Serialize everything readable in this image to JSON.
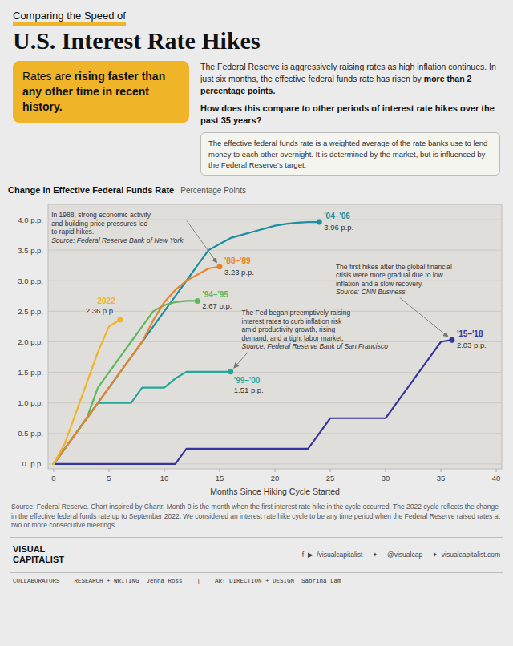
{
  "chart_data": {
    "type": "line",
    "subtitle": "Comparing the Speed of",
    "title": "U.S. Interest Rate Hikes",
    "highlight": [
      "Rates are",
      "rising faster than any other time in recent history."
    ],
    "intro": [
      "The Federal Reserve is aggressively raising rates as high inflation continues. In just six months, the effective federal funds rate has risen by",
      "more than 2 percentage points."
    ],
    "question": "How does this compare to other periods of interest rate hikes over the past 35 years?",
    "info": "The effective federal funds rate is a weighted average of the rate banks use to lend money to each other overnight. It is determined by the market, but is influenced by the Federal Reserve's target.",
    "ylabel": "Change in Effective Federal Funds Rate",
    "yunit": "Percentage Points",
    "xlabel": "Months Since Hiking Cycle Started",
    "xlim": [
      -0.5,
      40.5
    ],
    "ylim": [
      -0.08,
      4.25
    ],
    "xticks": [
      0,
      5,
      10,
      15,
      20,
      25,
      30,
      35,
      40
    ],
    "yticks": [
      {
        "value": 0.0,
        "label": "0. p.p."
      },
      {
        "value": 0.5,
        "label": "0.5 p.p."
      },
      {
        "value": 1.0,
        "label": "1.0 p.p."
      },
      {
        "value": 1.5,
        "label": "1.5 p.p."
      },
      {
        "value": 2.0,
        "label": "2.0 p.p."
      },
      {
        "value": 2.5,
        "label": "2.5 p.p."
      },
      {
        "value": 3.0,
        "label": "3.0 p.p."
      },
      {
        "value": 3.5,
        "label": "3.5 p.p."
      },
      {
        "value": 4.0,
        "label": "4.0 p.p."
      }
    ],
    "grid": true,
    "series": [
      {
        "name": "'15–'18",
        "color": "#3535a0",
        "x": [
          0,
          1,
          2,
          3,
          4,
          5,
          6,
          7,
          8,
          9,
          10,
          11,
          12,
          13,
          14,
          15,
          16,
          17,
          18,
          19,
          20,
          21,
          22,
          23,
          24,
          25,
          26,
          27,
          28,
          29,
          30,
          31,
          32,
          33,
          34,
          35,
          36
        ],
        "values": [
          0.0,
          0.0,
          0.0,
          0.0,
          0.0,
          0.0,
          0.0,
          0.0,
          0.0,
          0.0,
          0.0,
          0.0,
          0.25,
          0.25,
          0.25,
          0.25,
          0.25,
          0.25,
          0.25,
          0.25,
          0.25,
          0.25,
          0.25,
          0.25,
          0.5,
          0.75,
          0.75,
          0.75,
          0.75,
          0.75,
          0.75,
          1.0,
          1.25,
          1.5,
          1.75,
          2.0,
          2.03
        ],
        "value_labels": [
          null,
          null,
          null,
          null,
          null,
          null,
          null,
          null,
          null,
          null,
          null,
          null,
          null,
          null,
          null,
          null,
          null,
          null,
          null,
          null,
          null,
          null,
          null,
          null,
          null,
          null,
          null,
          null,
          null,
          null,
          null,
          null,
          null,
          null,
          null,
          null,
          "2.03 p.p."
        ]
      },
      {
        "name": "'04–'06",
        "color": "#1a8fa0",
        "x": [
          0,
          1,
          2,
          3,
          4,
          5,
          6,
          7,
          8,
          9,
          10,
          11,
          12,
          13,
          14,
          15,
          16,
          17,
          18,
          19,
          20,
          21,
          22,
          23,
          24
        ],
        "values": [
          0.0,
          0.25,
          0.5,
          0.75,
          1.0,
          1.25,
          1.5,
          1.75,
          2.0,
          2.25,
          2.5,
          2.75,
          3.0,
          3.25,
          3.5,
          3.6,
          3.7,
          3.75,
          3.8,
          3.85,
          3.9,
          3.93,
          3.95,
          3.96,
          3.96
        ],
        "value_labels": [
          null,
          null,
          null,
          null,
          null,
          null,
          null,
          null,
          null,
          null,
          null,
          null,
          null,
          null,
          null,
          null,
          null,
          null,
          null,
          null,
          null,
          null,
          null,
          null,
          "3.96 p.p."
        ]
      },
      {
        "name": "'99–'00",
        "color": "#26a699",
        "x": [
          0,
          1,
          2,
          3,
          4,
          5,
          6,
          7,
          8,
          9,
          10,
          11,
          12,
          13,
          14,
          15,
          16
        ],
        "values": [
          0.0,
          0.25,
          0.5,
          0.75,
          1.0,
          1.0,
          1.0,
          1.0,
          1.25,
          1.25,
          1.25,
          1.4,
          1.51,
          1.51,
          1.51,
          1.51,
          1.51
        ],
        "value_labels": [
          null,
          null,
          null,
          null,
          null,
          null,
          null,
          null,
          null,
          null,
          null,
          null,
          null,
          null,
          null,
          null,
          "1.51 p.p."
        ]
      },
      {
        "name": "'94–'95",
        "color": "#5db85d",
        "x": [
          0,
          1,
          2,
          3,
          4,
          5,
          6,
          7,
          8,
          9,
          10,
          11,
          12,
          13
        ],
        "values": [
          0.0,
          0.25,
          0.5,
          0.75,
          1.25,
          1.5,
          1.75,
          2.0,
          2.25,
          2.5,
          2.6,
          2.65,
          2.67,
          2.67
        ],
        "value_labels": [
          null,
          null,
          null,
          null,
          null,
          null,
          null,
          null,
          null,
          null,
          null,
          null,
          null,
          "2.67 p.p."
        ]
      },
      {
        "name": "'88–'89",
        "color": "#e8832a",
        "x": [
          0,
          1,
          2,
          3,
          4,
          5,
          6,
          7,
          8,
          9,
          10,
          11,
          12,
          13,
          14,
          15
        ],
        "values": [
          0.0,
          0.25,
          0.5,
          0.75,
          1.0,
          1.25,
          1.5,
          1.75,
          2.0,
          2.35,
          2.65,
          2.85,
          3.0,
          3.1,
          3.2,
          3.23
        ],
        "value_labels": [
          null,
          null,
          null,
          null,
          null,
          null,
          null,
          null,
          null,
          null,
          null,
          null,
          null,
          null,
          null,
          "3.23 p.p."
        ]
      },
      {
        "name": "2022",
        "color": "#f0b429",
        "x": [
          0,
          1,
          2,
          3,
          4,
          5,
          6
        ],
        "values": [
          0.0,
          0.33,
          0.83,
          1.33,
          1.83,
          2.25,
          2.36
        ],
        "value_labels": [
          null,
          null,
          null,
          null,
          null,
          null,
          "2.36 p.p."
        ]
      }
    ],
    "annotations": [
      {
        "text": "In 1988, strong economic activity\nand building price pressures led\nto rapid hikes.",
        "source": "Source: Federal Reserve Bank of New York"
      },
      {
        "text": "The Fed began preemptively raising\ninterest rates to curb inflation risk\namid productivity growth, rising\ndemand, and a tight labor market.",
        "source": "Source: Federal Reserve Bank of San Francisco"
      },
      {
        "text": "The first hikes after the global financial\ncrisis were more gradual due to low\ninflation and a slow recovery.",
        "source": "Source: CNN Business"
      }
    ],
    "source": "Source: Federal Reserve. Chart inspired by Chartr. Month 0 is the month when the first interest rate hike in the cycle occurred. The 2022 cycle reflects the change in the effective federal funds rate up to September 2022. We considered an interest rate hike cycle to be any time period when the Federal Reserve raised rates at two or more consecutive meetings.",
    "footer": [
      "VISUAL\nCAPITALIST",
      "f  ▶  /visualcapitalist     ✦     @visualcap     ✦  visualcapitalist.com",
      "COLLABORATORS    RESEARCH + WRITING  Jenna Ross    |    ART DIRECTION + DESIGN  Sabrina Lam"
    ]
  }
}
